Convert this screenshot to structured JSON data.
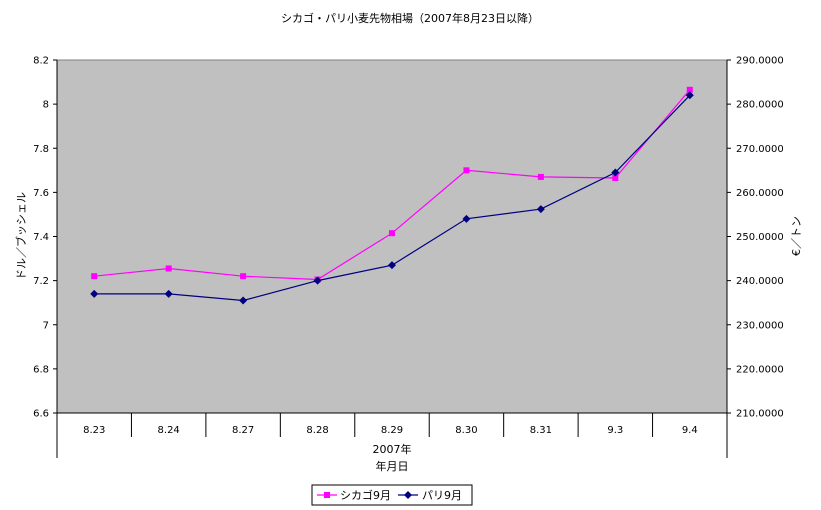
{
  "chart_data": {
    "type": "line",
    "title": "シカゴ・パリ小麦先物相場（2007年8月23日以降）",
    "xlabel_line1": "2007年",
    "xlabel_line2": "年月日",
    "ylabel_left": "ドル／ブッシェル",
    "ylabel_right": "€／トン",
    "categories": [
      "8.23",
      "8.24",
      "8.27",
      "8.28",
      "8.29",
      "8.30",
      "8.31",
      "9.3",
      "9.4"
    ],
    "ylim_left": [
      6.6,
      8.2
    ],
    "yticks_left": [
      "6.6",
      "6.8",
      "7",
      "7.2",
      "7.4",
      "7.6",
      "7.8",
      "8",
      "8.2"
    ],
    "ylim_right": [
      210,
      290
    ],
    "yticks_right": [
      "210.0000",
      "220.0000",
      "230.0000",
      "240.0000",
      "250.0000",
      "260.0000",
      "270.0000",
      "280.0000",
      "290.0000"
    ],
    "grid": false,
    "legend_position": "bottom",
    "plot_background": "#c0c0c0",
    "series": [
      {
        "name": "シカゴ9月",
        "axis": "left",
        "color": "#ff00ff",
        "marker": "square",
        "values": [
          7.22,
          7.255,
          7.22,
          7.205,
          7.415,
          7.7,
          7.67,
          7.665,
          8.065
        ]
      },
      {
        "name": "パリ9月",
        "axis": "right",
        "color": "#000080",
        "marker": "diamond",
        "values": [
          237.0,
          237.0,
          235.5,
          240.0,
          243.5,
          254.0,
          256.2,
          264.5,
          282.0
        ]
      }
    ]
  }
}
